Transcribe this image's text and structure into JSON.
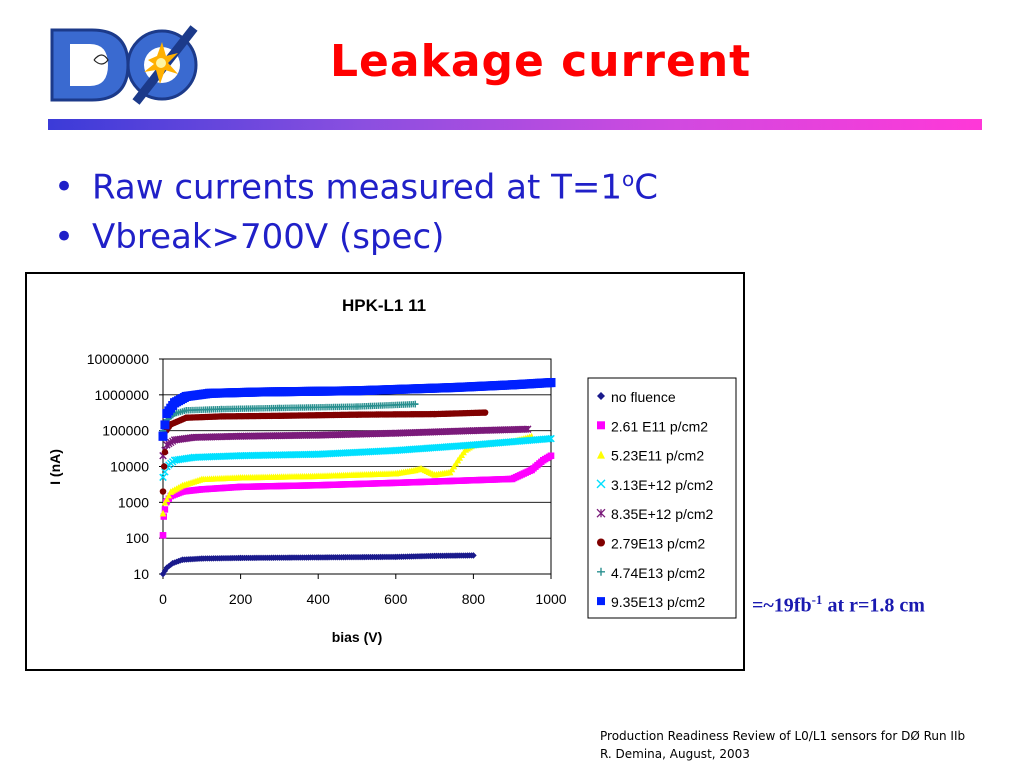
{
  "slide": {
    "title": "Leakage current",
    "bullets": [
      {
        "text": "Raw currents measured at T=1",
        "sup": "o",
        "tail": "C"
      },
      {
        "text": "Vbreak>700V (spec)",
        "sup": "",
        "tail": ""
      }
    ],
    "note": {
      "pre": "=~19fb",
      "sup": "-1",
      "post": " at r=1.8 cm"
    },
    "footer": [
      "Production Readiness Review of L0/L1 sensors for DØ Run IIb",
      "R. Demina, August, 2003"
    ],
    "logo_text": "DØ"
  },
  "chart_data": {
    "type": "scatter",
    "title": "HPK-L1 11",
    "xlabel": "bias (V)",
    "ylabel": "I (nA)",
    "xlim": [
      0,
      1000
    ],
    "ylim": [
      10,
      10000000
    ],
    "yscale": "log",
    "grid": true,
    "legend_position": "right",
    "x_ticks": [
      "0",
      "200",
      "400",
      "600",
      "800",
      "1000"
    ],
    "y_ticks": [
      "10",
      "100",
      "1000",
      "10000",
      "100000",
      "1000000",
      "10000000"
    ],
    "series": [
      {
        "name": "no fluence",
        "marker": "diamond",
        "color": "#1a1a8c",
        "points": [
          [
            0,
            10
          ],
          [
            10,
            15
          ],
          [
            25,
            20
          ],
          [
            50,
            25
          ],
          [
            100,
            27
          ],
          [
            200,
            28
          ],
          [
            400,
            29
          ],
          [
            600,
            30
          ],
          [
            700,
            32
          ],
          [
            800,
            33
          ]
        ]
      },
      {
        "name": "2.61 E11 p/cm2",
        "marker": "square",
        "color": "#ff00ff",
        "points": [
          [
            0,
            120
          ],
          [
            2,
            400
          ],
          [
            8,
            1000
          ],
          [
            20,
            1500
          ],
          [
            50,
            2000
          ],
          [
            100,
            2300
          ],
          [
            200,
            2700
          ],
          [
            400,
            3000
          ],
          [
            600,
            3500
          ],
          [
            700,
            3800
          ],
          [
            900,
            4500
          ],
          [
            950,
            8000
          ],
          [
            980,
            15000
          ],
          [
            1000,
            20000
          ]
        ]
      },
      {
        "name": "5.23E11 p/cm2",
        "marker": "triangle",
        "color": "#ffff00",
        "points": [
          [
            0,
            500
          ],
          [
            5,
            1000
          ],
          [
            20,
            2000
          ],
          [
            50,
            3000
          ],
          [
            100,
            4500
          ],
          [
            200,
            5000
          ],
          [
            400,
            5500
          ],
          [
            600,
            6500
          ],
          [
            650,
            8000
          ],
          [
            665,
            9000
          ],
          [
            700,
            6000
          ],
          [
            740,
            7000
          ],
          [
            760,
            15000
          ],
          [
            780,
            30000
          ],
          [
            800,
            40000
          ],
          [
            900,
            50000
          ],
          [
            950,
            70000
          ]
        ]
      },
      {
        "name": "3.13E+12 p/cm2",
        "marker": "x",
        "color": "#00e0ff",
        "points": [
          [
            0,
            5000
          ],
          [
            10,
            10000
          ],
          [
            30,
            15000
          ],
          [
            80,
            18000
          ],
          [
            200,
            20000
          ],
          [
            400,
            22000
          ],
          [
            600,
            28000
          ],
          [
            800,
            40000
          ],
          [
            1000,
            60000
          ]
        ]
      },
      {
        "name": "8.35E+12 p/cm2",
        "marker": "star",
        "color": "#7a1a7a",
        "points": [
          [
            0,
            20000
          ],
          [
            10,
            40000
          ],
          [
            30,
            55000
          ],
          [
            80,
            65000
          ],
          [
            200,
            70000
          ],
          [
            400,
            75000
          ],
          [
            600,
            85000
          ],
          [
            800,
            100000
          ],
          [
            940,
            110000
          ]
        ]
      },
      {
        "name": "2.79E13 p/cm2",
        "marker": "circle",
        "color": "#800000",
        "points": [
          [
            0,
            2000
          ],
          [
            3,
            10000
          ],
          [
            8,
            100000
          ],
          [
            20,
            150000
          ],
          [
            60,
            230000
          ],
          [
            150,
            250000
          ],
          [
            300,
            260000
          ],
          [
            500,
            280000
          ],
          [
            700,
            290000
          ],
          [
            830,
            320000
          ]
        ]
      },
      {
        "name": "4.74E13 p/cm2",
        "marker": "plus",
        "color": "#2a9090",
        "points": [
          [
            0,
            100000
          ],
          [
            10,
            200000
          ],
          [
            30,
            300000
          ],
          [
            60,
            370000
          ],
          [
            150,
            400000
          ],
          [
            300,
            430000
          ],
          [
            500,
            470000
          ],
          [
            650,
            550000
          ],
          [
            650,
            550000
          ]
        ]
      },
      {
        "name": "9.35E13 p/cm2",
        "marker": "square",
        "color": "#0020ff",
        "points": [
          [
            0,
            70000
          ],
          [
            10,
            300000
          ],
          [
            30,
            600000
          ],
          [
            60,
            900000
          ],
          [
            120,
            1100000
          ],
          [
            250,
            1200000
          ],
          [
            500,
            1300000
          ],
          [
            750,
            1600000
          ],
          [
            900,
            1900000
          ],
          [
            1000,
            2200000
          ]
        ]
      }
    ]
  }
}
